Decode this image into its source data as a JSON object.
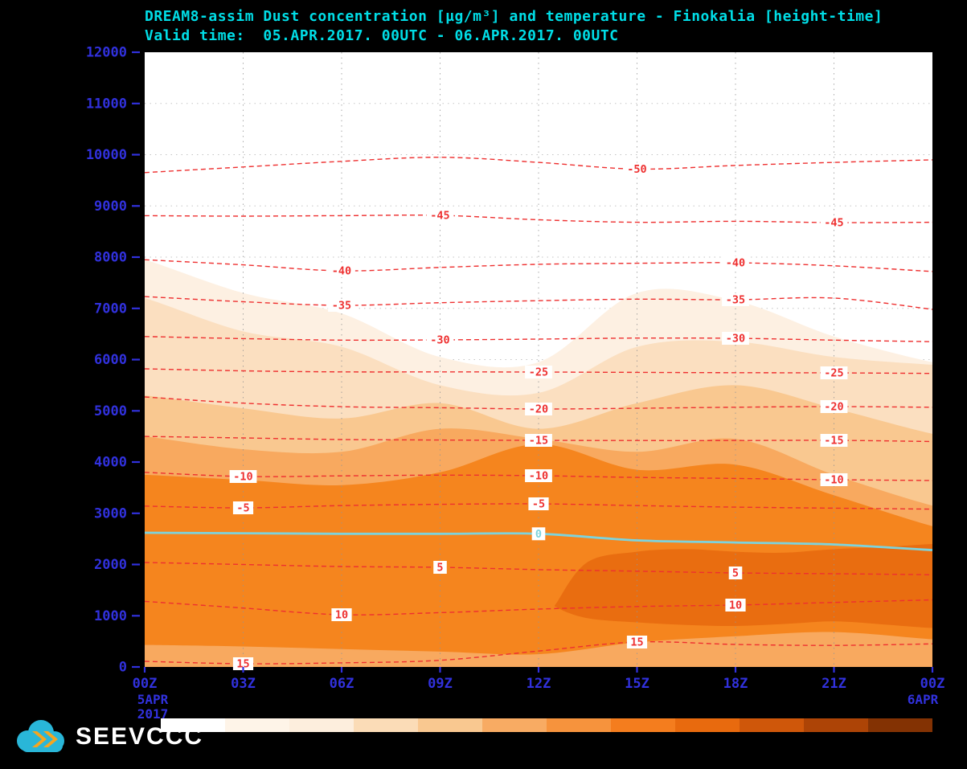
{
  "title": {
    "line1": "DREAM8-assim Dust concentration [µg/m³] and temperature - Finokalia [height-time]",
    "line2": "Valid time:  05.APR.2017. 00UTC - 06.APR.2017. 00UTC"
  },
  "colors": {
    "background": "#000000",
    "title_text": "#00dde6",
    "axis_text": "#3131dd",
    "temp_contour": "#ee3030",
    "zero_line": "#7dd3dc",
    "plot_bg": "#ffffff",
    "grid": "#949494",
    "logo_cloud": "#29b6d8",
    "logo_arrow": "#f6a51f",
    "logo_text": "#ffffff"
  },
  "logo": {
    "text": "SEEVCCC"
  },
  "chart_data": {
    "type": "filled-contour-height-time",
    "title": "DREAM8-assim Dust concentration [µg/m³] and temperature - Finokalia [height-time]",
    "valid_time": "05.APR.2017. 00UTC - 06.APR.2017. 00UTC",
    "station": "Finokalia",
    "x_hours": [
      0,
      3,
      6,
      9,
      12,
      15,
      18,
      21,
      24
    ],
    "x_tick_labels": [
      "00Z",
      "03Z",
      "06Z",
      "09Z",
      "12Z",
      "15Z",
      "18Z",
      "21Z",
      "00Z"
    ],
    "x_axis_sub_labels": {
      "start": [
        "5APR",
        "2017"
      ],
      "end": [
        "6APR"
      ]
    },
    "y_ticks_m": [
      0,
      1000,
      2000,
      3000,
      4000,
      5000,
      6000,
      7000,
      8000,
      9000,
      10000,
      11000,
      12000
    ],
    "ylim": [
      0,
      12000
    ],
    "grid": "dotted",
    "dust_shading": {
      "note": "filled dust-concentration bands; 'top'/'bottom' are boundary heights in meters at each x hour (bands without 'bottom' extend to the ground)",
      "bands": [
        {
          "name": "level1",
          "color": "#fdf0e2",
          "top": [
            7950,
            7300,
            6900,
            6050,
            5950,
            7300,
            7150,
            6450,
            5950
          ]
        },
        {
          "name": "level2",
          "color": "#fbdfc0",
          "top": [
            7200,
            6550,
            6250,
            5500,
            5350,
            6250,
            6350,
            6050,
            5900
          ]
        },
        {
          "name": "level3",
          "color": "#f9c890",
          "top": [
            5300,
            5050,
            4850,
            5150,
            4650,
            5150,
            5500,
            5050,
            4550
          ]
        },
        {
          "name": "level4",
          "color": "#f8a95f",
          "top": [
            4500,
            4250,
            4200,
            4650,
            4450,
            4200,
            4450,
            3750,
            3150
          ]
        },
        {
          "name": "level5",
          "color": "#f5851e",
          "top": [
            3750,
            3650,
            3550,
            3800,
            4350,
            3850,
            3950,
            3350,
            2750
          ],
          "bottom": [
            430,
            400,
            350,
            300,
            250,
            480,
            600,
            680,
            540
          ]
        },
        {
          "name": "level6-core",
          "color": "#e96d10",
          "t": [
            12.6,
            13.5,
            15,
            16.5,
            18,
            19.5,
            21,
            22.5,
            24
          ],
          "top": [
            1300,
            2050,
            2250,
            2300,
            2250,
            2230,
            2300,
            2340,
            2400
          ],
          "bottom": [
            1150,
            950,
            870,
            820,
            800,
            840,
            890,
            830,
            760
          ]
        }
      ]
    },
    "temperature_contours": {
      "units": "°C",
      "style": "red dashed",
      "levels": [
        {
          "value": -50,
          "heights": [
            9650,
            9760,
            9870,
            9950,
            9850,
            9720,
            9790,
            9850,
            9900
          ],
          "labels_at_hours": [
            15
          ]
        },
        {
          "value": -45,
          "heights": [
            8810,
            8800,
            8810,
            8815,
            8730,
            8680,
            8700,
            8675,
            8680
          ],
          "labels_at_hours": [
            9,
            21
          ]
        },
        {
          "value": -40,
          "heights": [
            7950,
            7850,
            7733,
            7800,
            7860,
            7880,
            7890,
            7830,
            7720
          ],
          "labels_at_hours": [
            6,
            18
          ]
        },
        {
          "value": -35,
          "heights": [
            7230,
            7130,
            7059,
            7110,
            7150,
            7180,
            7169,
            7200,
            6980
          ],
          "labels_at_hours": [
            6,
            18
          ]
        },
        {
          "value": -30,
          "heights": [
            6450,
            6410,
            6380,
            6385,
            6400,
            6420,
            6416,
            6380,
            6350
          ],
          "labels_at_hours": [
            9,
            18
          ]
        },
        {
          "value": -25,
          "heights": [
            5820,
            5780,
            5760,
            5760,
            5757,
            5750,
            5745,
            5741,
            5730
          ],
          "labels_at_hours": [
            12,
            21
          ]
        },
        {
          "value": -20,
          "heights": [
            5270,
            5150,
            5080,
            5060,
            5035,
            5050,
            5070,
            5082,
            5070
          ],
          "labels_at_hours": [
            12,
            21
          ]
        },
        {
          "value": -15,
          "heights": [
            4500,
            4470,
            4440,
            4430,
            4424,
            4420,
            4420,
            4424,
            4400
          ],
          "labels_at_hours": [
            12,
            21
          ]
        },
        {
          "value": -10,
          "heights": [
            3800,
            3718,
            3730,
            3745,
            3733,
            3700,
            3680,
            3655,
            3640
          ],
          "labels_at_hours": [
            3,
            12,
            21
          ]
        },
        {
          "value": -5,
          "heights": [
            3140,
            3106,
            3150,
            3175,
            3184,
            3150,
            3120,
            3100,
            3080
          ],
          "labels_at_hours": [
            3,
            12
          ]
        },
        {
          "value": 5,
          "heights": [
            2040,
            2000,
            1960,
            1945,
            1900,
            1870,
            1835,
            1820,
            1800
          ],
          "labels_at_hours": [
            9,
            18
          ]
        },
        {
          "value": 10,
          "heights": [
            1280,
            1150,
            1020,
            1060,
            1130,
            1180,
            1208,
            1260,
            1310
          ],
          "labels_at_hours": [
            6,
            18
          ]
        },
        {
          "value": 15,
          "heights": [
            110,
            63,
            80,
            130,
            310,
            486,
            440,
            420,
            450
          ],
          "labels_at_hours": [
            3,
            15
          ]
        }
      ]
    },
    "zero_isotherm": {
      "value": 0,
      "heights": [
        2620,
        2610,
        2600,
        2600,
        2600,
        2470,
        2430,
        2390,
        2280
      ],
      "label": "0",
      "label_at_hour": 12
    },
    "colorbar": {
      "palette": [
        "#ffffff",
        "#fef4e8",
        "#fdeedd",
        "#fbdcb7",
        "#f9c890",
        "#f8ab63",
        "#f6933d",
        "#f47d1e",
        "#e86a0e",
        "#cf570a",
        "#ad4406",
        "#833203"
      ]
    }
  }
}
